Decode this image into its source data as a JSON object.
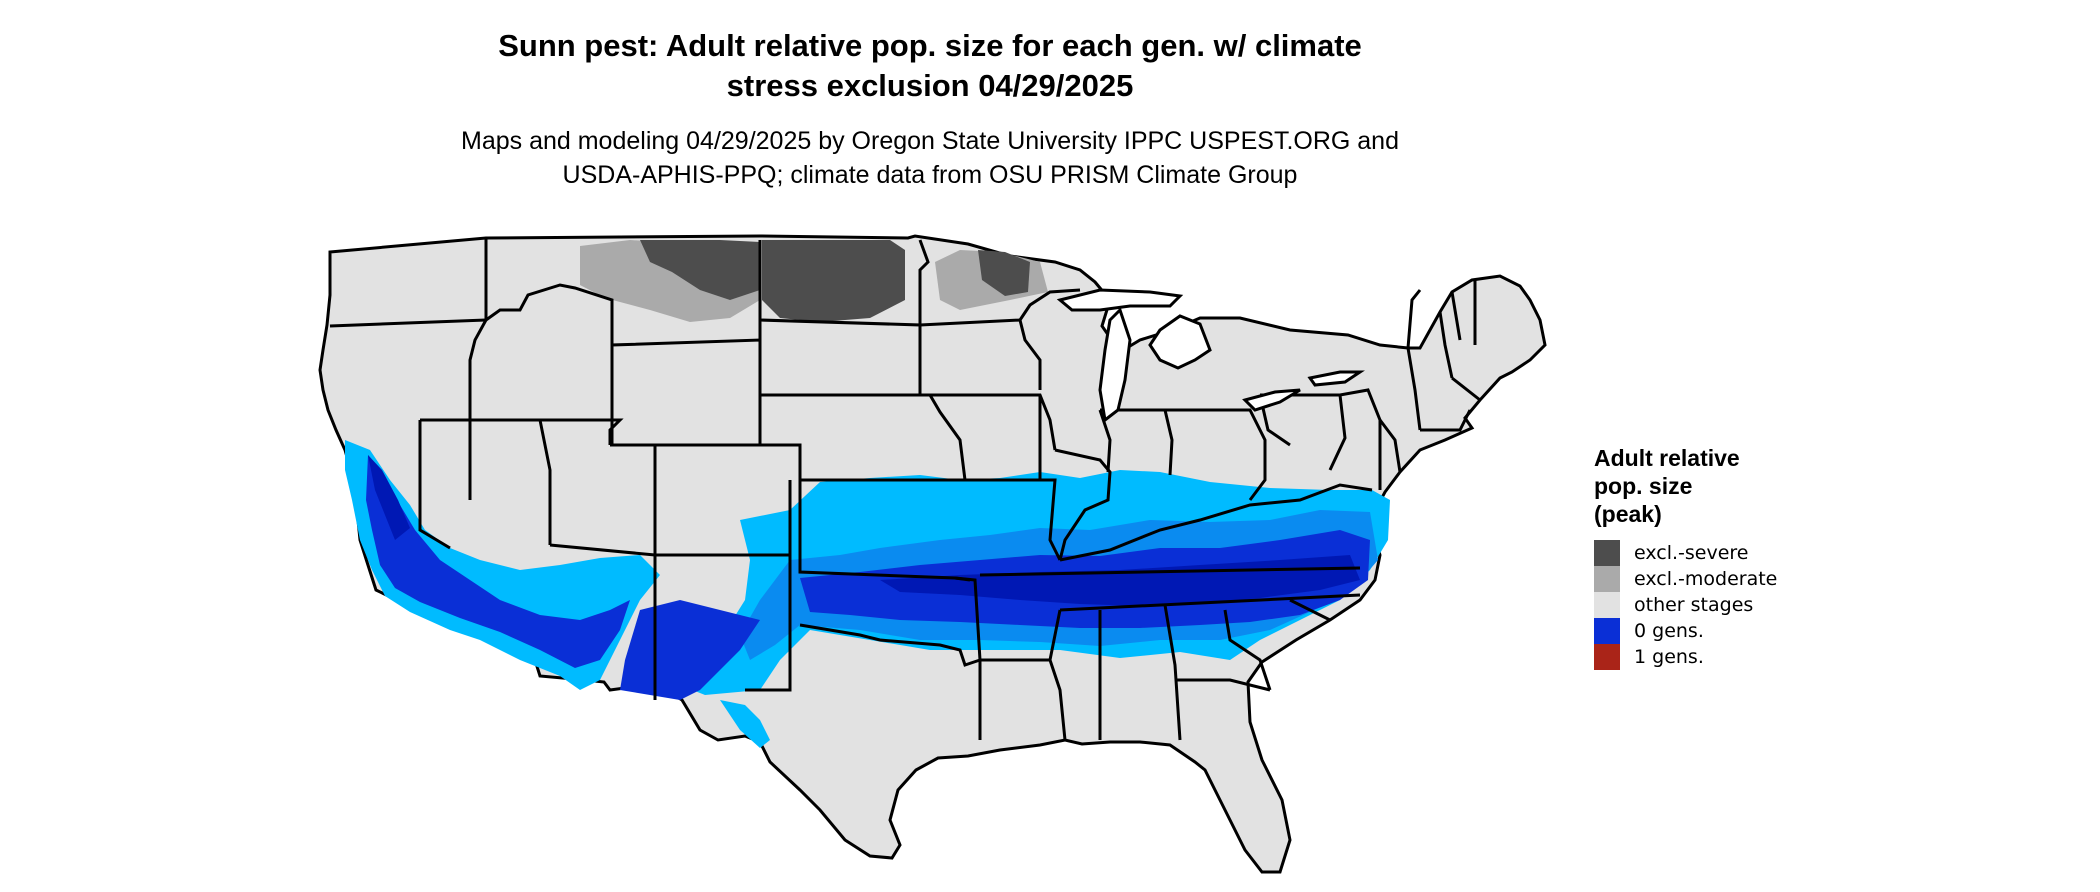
{
  "title": {
    "line1": "Sunn pest: Adult relative pop. size for each gen. w/ climate",
    "line2": "stress exclusion 04/29/2025"
  },
  "subtitle": {
    "line1": "Maps and modeling 04/29/2025 by Oregon State University IPPC USPEST.ORG and",
    "line2": "USDA-APHIS-PPQ; climate data from OSU PRISM Climate Group"
  },
  "legend": {
    "title": [
      "Adult relative",
      "pop. size",
      "(peak)"
    ],
    "items": [
      {
        "label": "excl.-severe",
        "color": "#4d4d4d"
      },
      {
        "label": "excl.-moderate",
        "color": "#aaaaaa"
      },
      {
        "label": "other stages",
        "color": "#e2e2e2"
      },
      {
        "label": "0 gens.",
        "color": "#0a2fd6"
      },
      {
        "label": "1 gens.",
        "color": "#aa2418"
      }
    ]
  },
  "map_colors": {
    "land": "#e2e2e2",
    "border": "#000000",
    "light_blue": "#00bbff",
    "medium_blue": "#0a8bf0",
    "blue": "#0a2fd6",
    "dark_blue": "#0018b4",
    "excl_severe": "#4d4d4d",
    "excl_moderate": "#aaaaaa"
  }
}
